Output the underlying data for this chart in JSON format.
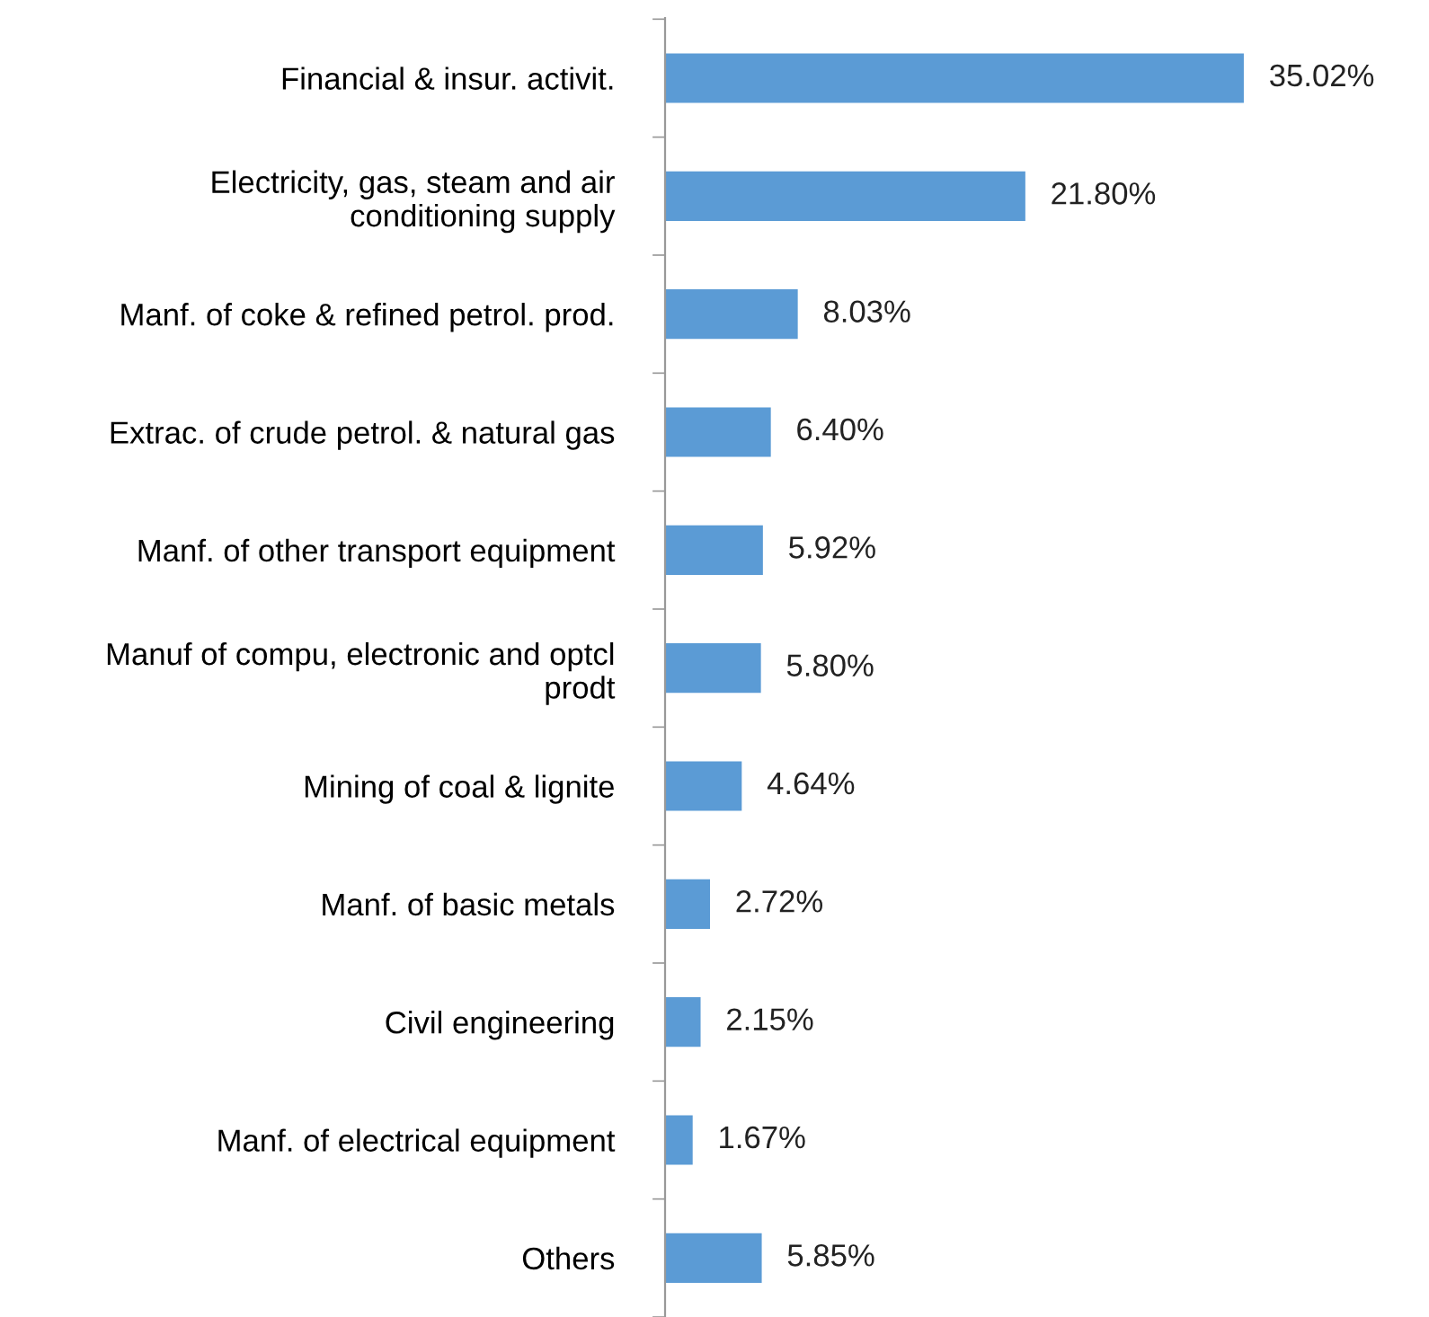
{
  "chart_data": {
    "type": "bar",
    "orientation": "horizontal",
    "categories": [
      "Financial & insur. activit.",
      "Electricity, gas, steam and air\nconditioning supply",
      "Manf. of coke & refined petrol. prod.",
      "Extrac. of crude petrol. & natural gas",
      "Manf. of other transport equipment",
      "Manuf of compu, electronic and optcl\nprodt",
      "Mining of coal & lignite",
      "Manf. of basic metals",
      "Civil engineering",
      "Manf. of electrical equipment",
      "Others"
    ],
    "values": [
      35.02,
      21.8,
      8.03,
      6.4,
      5.92,
      5.8,
      4.64,
      2.72,
      2.15,
      1.67,
      5.85
    ],
    "value_labels": [
      "35.02%",
      "21.80%",
      "8.03%",
      "6.40%",
      "5.92%",
      "5.80%",
      "4.64%",
      "2.72%",
      "2.15%",
      "1.67%",
      "5.85%"
    ],
    "color": "#5b9bd5",
    "grid": false,
    "legend": false
  }
}
